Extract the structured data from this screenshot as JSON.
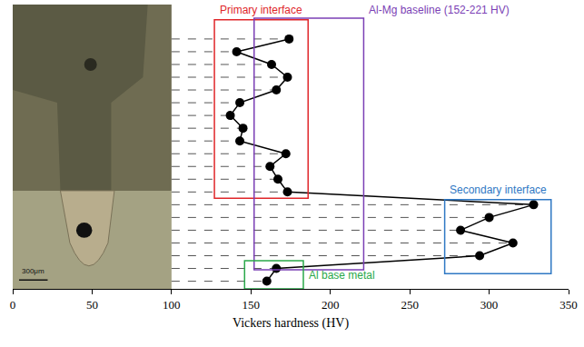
{
  "chart_data": {
    "type": "line",
    "orientation": "horizontal",
    "marker": "circle",
    "color": "#000000",
    "x_label": "Vickers hardness (HV)",
    "values": [
      174,
      141,
      163,
      173,
      166,
      143,
      137,
      145,
      143,
      172,
      162,
      167,
      173,
      328,
      300,
      282,
      315,
      294,
      166,
      160
    ],
    "positions": [
      1,
      2,
      3,
      4,
      5,
      6,
      7,
      8,
      9,
      10,
      11,
      12,
      13,
      14,
      15,
      16,
      17,
      18,
      19,
      20
    ],
    "xlim": [
      0,
      350
    ],
    "xticks": [
      0,
      50,
      100,
      150,
      200,
      250,
      300,
      350
    ],
    "ylim": [
      20.6,
      -1.7
    ],
    "tick_labels": "x",
    "grid": false,
    "micrograph": {
      "scale_bar": "300μm",
      "x": [
        0,
        100
      ]
    },
    "regions": [
      {
        "label": "Primary interface",
        "color": "#e0262a",
        "x": [
          127,
          186
        ],
        "y": [
          -0.5,
          13.5
        ],
        "label_side": "top"
      },
      {
        "label": "Al-Mg baseline (152-221 HV)",
        "color": "#7b3fb5",
        "x": [
          152,
          221
        ],
        "y": [
          -0.64,
          19.1
        ],
        "label_side": "top-right"
      },
      {
        "label": "Secondary interface",
        "color": "#2f78c4",
        "x": [
          272,
          339
        ],
        "y": [
          13.6,
          19.4
        ],
        "label_side": "top"
      },
      {
        "label": "Al base metal",
        "color": "#2aa84a",
        "x": [
          146,
          183
        ],
        "y": [
          18.4,
          20.6
        ],
        "label_side": "right"
      }
    ]
  }
}
